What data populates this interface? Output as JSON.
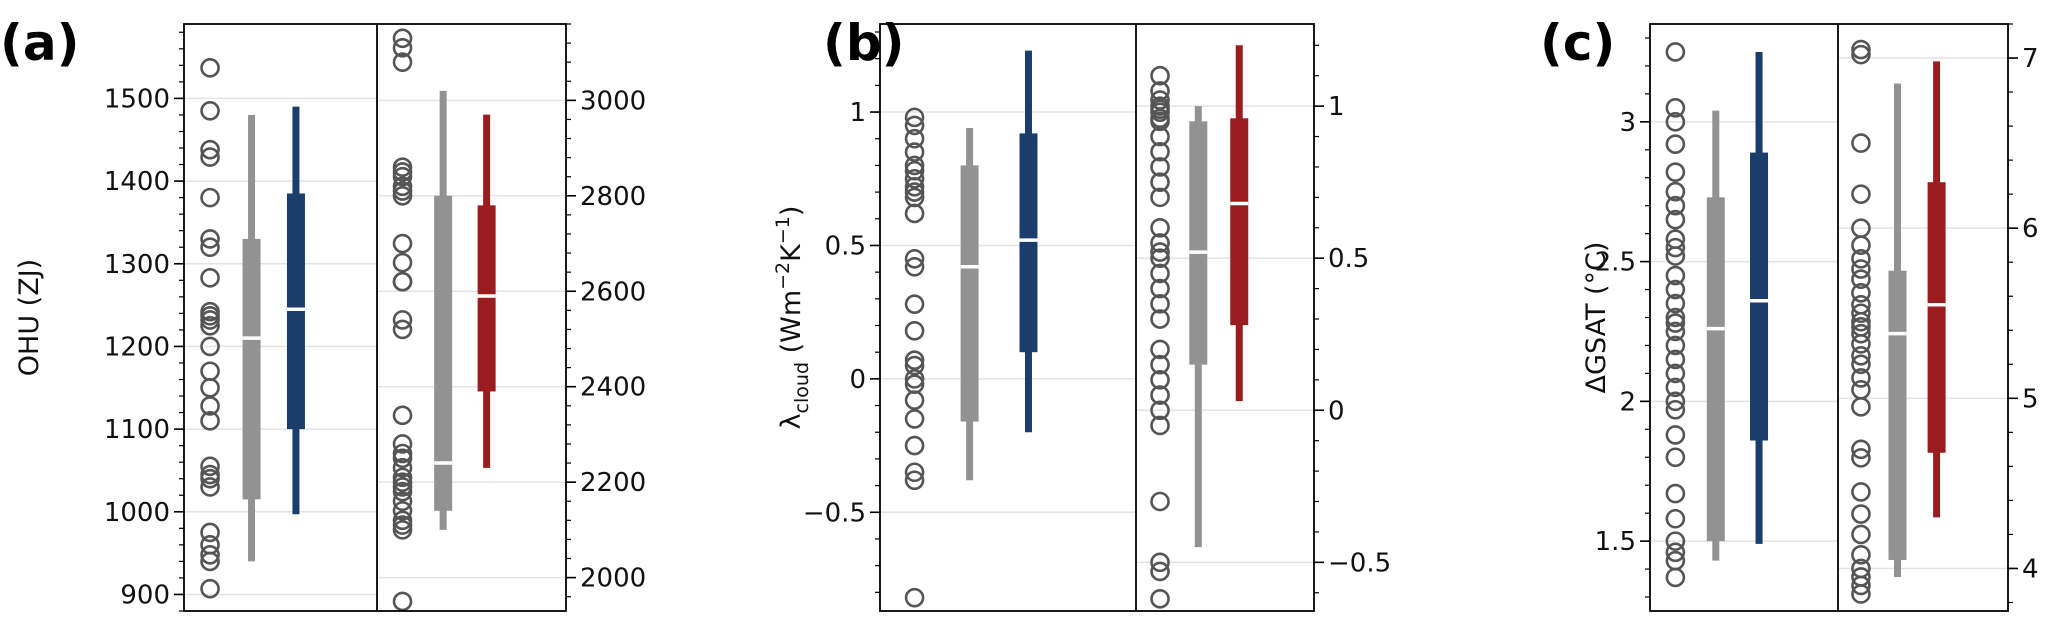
{
  "colors": {
    "grey": "#929292",
    "blue": "#1b3d6b",
    "red": "#9b1c1f",
    "grid": "#e3e3e3",
    "median": "#ffffff",
    "marker": "#555555"
  },
  "chart_data": [
    {
      "type": "box",
      "panel_label": "(a)",
      "ylabel": "OHU (ZJ)",
      "grid": true,
      "left": {
        "ylim": [
          880,
          1590
        ],
        "ticks": [
          900,
          1000,
          1100,
          1200,
          1300,
          1400,
          1500
        ],
        "tick_labels": [
          "900",
          "1000",
          "1100",
          "1200",
          "1300",
          "1400",
          "1500"
        ],
        "points": [
          1537,
          1485,
          1438,
          1429,
          1380,
          1330,
          1320,
          1283,
          1242,
          1237,
          1232,
          1225,
          1200,
          1170,
          1150,
          1128,
          1110,
          1055,
          1045,
          1040,
          1030,
          975,
          960,
          948,
          940,
          907
        ],
        "grey_box": {
          "whisker_low": 940,
          "q1": 1015,
          "median": 1210,
          "q3": 1330,
          "whisker_high": 1480
        },
        "color_box": {
          "whisker_low": 997,
          "q1": 1100,
          "median": 1245,
          "q3": 1385,
          "whisker_high": 1490
        }
      },
      "right": {
        "ylim": [
          1930,
          3160
        ],
        "ticks": [
          2000,
          2200,
          2400,
          2600,
          2800,
          3000
        ],
        "tick_labels": [
          "2000",
          "2200",
          "2400",
          "2600",
          "2800",
          "3000"
        ],
        "points": [
          3130,
          3110,
          3080,
          2860,
          2850,
          2840,
          2820,
          2810,
          2800,
          2700,
          2660,
          2620,
          2620,
          2540,
          2520,
          2340,
          2280,
          2260,
          2250,
          2230,
          2210,
          2200,
          2190,
          2180,
          2160,
          2140,
          2120,
          2110,
          2100,
          1950
        ],
        "grey_box": {
          "whisker_low": 2100,
          "q1": 2140,
          "median": 2240,
          "q3": 2800,
          "whisker_high": 3020
        },
        "color_box": {
          "whisker_low": 2230,
          "q1": 2390,
          "median": 2590,
          "q3": 2780,
          "whisker_high": 2970
        }
      }
    },
    {
      "type": "box",
      "panel_label": "(b)",
      "ylabel": "λ<sub>cloud</sub> (Wm<sup>−2</sup>K<sup>−1</sup>)",
      "grid": true,
      "left": {
        "ylim": [
          -0.87,
          1.33
        ],
        "ticks": [
          -0.5,
          0,
          0.5,
          1
        ],
        "tick_labels": [
          "−0.5",
          "0",
          "0.5",
          "1"
        ],
        "points": [
          0.98,
          0.95,
          0.9,
          0.85,
          0.8,
          0.78,
          0.75,
          0.72,
          0.7,
          0.68,
          0.62,
          0.45,
          0.42,
          0.28,
          0.18,
          0.07,
          0.05,
          0.0,
          -0.02,
          -0.08,
          -0.15,
          -0.25,
          -0.35,
          -0.38,
          -0.82
        ],
        "grey_box": {
          "whisker_low": -0.38,
          "q1": -0.16,
          "median": 0.42,
          "q3": 0.8,
          "whisker_high": 0.94
        },
        "color_box": {
          "whisker_low": -0.2,
          "q1": 0.1,
          "median": 0.52,
          "q3": 0.92,
          "whisker_high": 1.23
        }
      },
      "right": {
        "ylim": [
          -0.66,
          1.27
        ],
        "ticks": [
          -0.5,
          0,
          0.5,
          1
        ],
        "tick_labels": [
          "−0.5",
          "0",
          "0.5",
          "1"
        ],
        "points": [
          1.1,
          1.05,
          1.02,
          1.0,
          0.99,
          0.98,
          0.96,
          0.95,
          0.9,
          0.85,
          0.8,
          0.75,
          0.7,
          0.6,
          0.55,
          0.52,
          0.5,
          0.45,
          0.4,
          0.35,
          0.3,
          0.2,
          0.15,
          0.1,
          0.05,
          0.0,
          -0.05,
          -0.3,
          -0.5,
          -0.53,
          -0.62
        ],
        "grey_box": {
          "whisker_low": -0.45,
          "q1": 0.15,
          "median": 0.52,
          "q3": 0.95,
          "whisker_high": 1.0
        },
        "color_box": {
          "whisker_low": 0.03,
          "q1": 0.28,
          "median": 0.68,
          "q3": 0.96,
          "whisker_high": 1.2
        }
      }
    },
    {
      "type": "box",
      "panel_label": "(c)",
      "ylabel": "ΔGSAT (°C)",
      "grid": true,
      "left": {
        "ylim": [
          1.25,
          3.35
        ],
        "ticks": [
          1.5,
          2,
          2.5,
          3
        ],
        "tick_labels": [
          "1.5",
          "2",
          "2.5",
          "3"
        ],
        "points": [
          3.25,
          3.05,
          3.0,
          2.92,
          2.82,
          2.75,
          2.7,
          2.65,
          2.58,
          2.55,
          2.52,
          2.45,
          2.4,
          2.35,
          2.3,
          2.28,
          2.25,
          2.2,
          2.15,
          2.1,
          2.05,
          2.0,
          1.97,
          1.88,
          1.8,
          1.67,
          1.58,
          1.5,
          1.46,
          1.43,
          1.37
        ],
        "grey_box": {
          "whisker_low": 1.43,
          "q1": 1.5,
          "median": 2.26,
          "q3": 2.73,
          "whisker_high": 3.04
        },
        "color_box": {
          "whisker_low": 1.49,
          "q1": 1.86,
          "median": 2.36,
          "q3": 2.89,
          "whisker_high": 3.25
        }
      },
      "right": {
        "ylim": [
          3.75,
          7.2
        ],
        "ticks": [
          4,
          5,
          6,
          7
        ],
        "tick_labels": [
          "4",
          "5",
          "6",
          "7"
        ],
        "points": [
          7.05,
          7.02,
          6.5,
          6.2,
          6.0,
          5.9,
          5.82,
          5.76,
          5.7,
          5.62,
          5.55,
          5.5,
          5.45,
          5.42,
          5.38,
          5.32,
          5.25,
          5.2,
          5.12,
          5.05,
          4.95,
          4.7,
          4.65,
          4.45,
          4.32,
          4.2,
          4.08,
          4.0,
          3.95,
          3.9,
          3.85
        ],
        "grey_box": {
          "whisker_low": 3.95,
          "q1": 4.05,
          "median": 5.38,
          "q3": 5.75,
          "whisker_high": 6.85
        },
        "color_box": {
          "whisker_low": 4.3,
          "q1": 4.68,
          "median": 5.55,
          "q3": 6.27,
          "whisker_high": 6.98
        }
      }
    }
  ]
}
